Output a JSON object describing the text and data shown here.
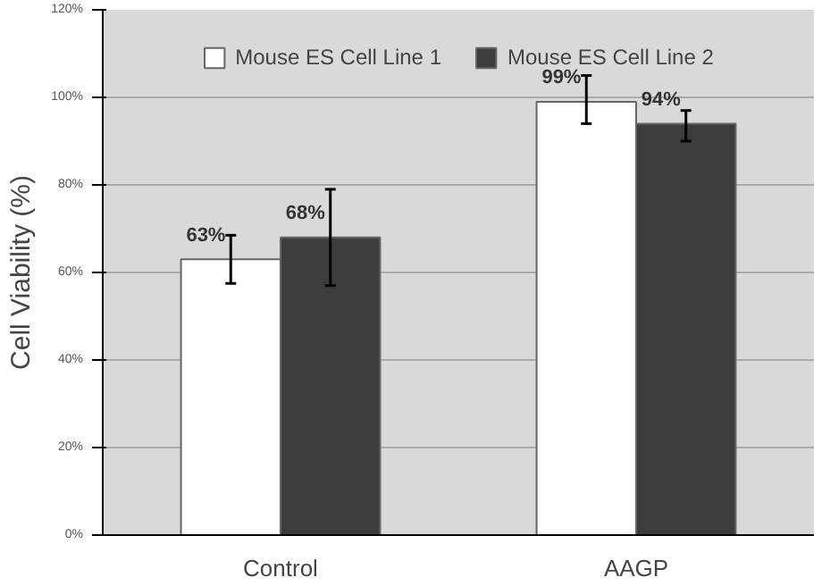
{
  "chart_data": {
    "type": "bar",
    "ylabel": "Cell Viability (%)",
    "categories": [
      "Control",
      "AAGP"
    ],
    "series": [
      {
        "name": "Mouse ES Cell Line 1",
        "color": "#ffffff",
        "values": [
          63,
          99
        ],
        "errors": [
          [
            57.5,
            68.5
          ],
          [
            94,
            105
          ]
        ],
        "value_labels": [
          "63%",
          "99%"
        ]
      },
      {
        "name": "Mouse ES Cell Line 2",
        "color": "#3c3c3c",
        "values": [
          68,
          94
        ],
        "errors": [
          [
            57,
            79
          ],
          [
            90,
            97
          ]
        ],
        "value_labels": [
          "68%",
          "94%"
        ]
      }
    ],
    "ylim": [
      0,
      120
    ],
    "yticks": [
      {
        "value": 0,
        "label": "0%"
      },
      {
        "value": 20,
        "label": "20%"
      },
      {
        "value": 40,
        "label": "40%"
      },
      {
        "value": 60,
        "label": "60%"
      },
      {
        "value": 80,
        "label": "80%"
      },
      {
        "value": 100,
        "label": "100%"
      },
      {
        "value": 120,
        "label": "120%"
      }
    ],
    "grid": "y",
    "legend": "top"
  }
}
